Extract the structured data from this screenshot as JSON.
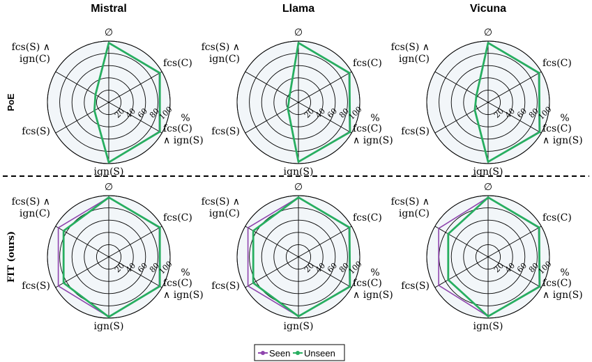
{
  "chart_data": {
    "type": "radar",
    "axes": [
      "∅",
      "fcs(C)",
      "fcs(C)\n∧ ign(S)",
      "ign(S)",
      "fcs(S)",
      "fcs(S) ∧\nign(C)"
    ],
    "tick_values": [
      20,
      40,
      60,
      80,
      100
    ],
    "tick_unit": "%",
    "rlim": [
      0,
      100
    ],
    "columns": [
      "Mistral",
      "Llama",
      "Vicuna"
    ],
    "rows": [
      "PoE",
      "FIT (ours)"
    ],
    "legend": [
      "Seen",
      "Unseen"
    ],
    "colors": {
      "Seen": "#8e44ad",
      "Unseen": "#27ae60"
    },
    "panels": [
      {
        "row": "PoE",
        "model": "Mistral",
        "series": [
          {
            "name": "Seen",
            "values": [
              97,
              95,
              95,
              98,
              27,
              25
            ]
          },
          {
            "name": "Unseen",
            "values": [
              97,
              96,
              96,
              98,
              27,
              25
            ]
          }
        ]
      },
      {
        "row": "PoE",
        "model": "Llama",
        "series": [
          {
            "name": "Seen",
            "values": [
              97,
              95,
              96,
              97,
              20,
              17
            ]
          },
          {
            "name": "Unseen",
            "values": [
              97,
              96,
              97,
              97,
              20,
              17
            ]
          }
        ]
      },
      {
        "row": "PoE",
        "model": "Vicuna",
        "series": [
          {
            "name": "Seen",
            "values": [
              97,
              95,
              96,
              97,
              25,
              22
            ]
          },
          {
            "name": "Unseen",
            "values": [
              97,
              96,
              97,
              97,
              25,
              22
            ]
          }
        ]
      },
      {
        "row": "FIT (ours)",
        "model": "Mistral",
        "series": [
          {
            "name": "Seen",
            "values": [
              97,
              95,
              95,
              98,
              95,
              95
            ]
          },
          {
            "name": "Unseen",
            "values": [
              97,
              96,
              96,
              98,
              85,
              85
            ]
          }
        ]
      },
      {
        "row": "FIT (ours)",
        "model": "Llama",
        "series": [
          {
            "name": "Seen",
            "values": [
              97,
              95,
              96,
              97,
              95,
              95
            ]
          },
          {
            "name": "Unseen",
            "values": [
              97,
              96,
              97,
              97,
              85,
              85
            ]
          }
        ]
      },
      {
        "row": "FIT (ours)",
        "model": "Vicuna",
        "series": [
          {
            "name": "Seen",
            "values": [
              97,
              95,
              96,
              97,
              93,
              93
            ]
          },
          {
            "name": "Unseen",
            "values": [
              97,
              96,
              97,
              97,
              75,
              75
            ]
          }
        ]
      }
    ],
    "grid": true,
    "legend_position": "bottom-center",
    "separator": "dashed"
  }
}
